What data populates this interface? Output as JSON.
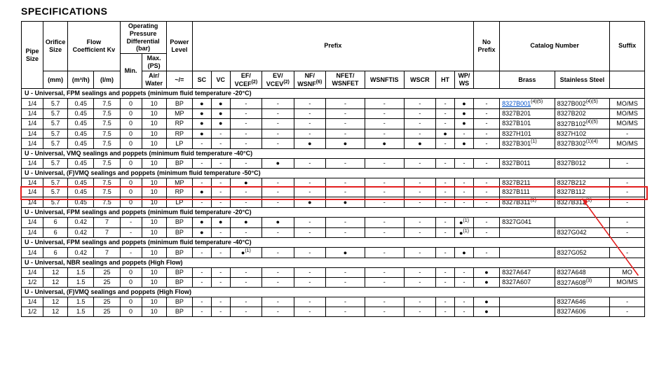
{
  "title": "SPECIFICATIONS",
  "header": {
    "pipeSize": "Pipe Size",
    "orifice": "Orifice Size",
    "flow": "Flow Coefficient Kv",
    "opdiff": "Operating Pressure Differential (bar)",
    "min": "Min.",
    "maxPS": "Max. (PS)",
    "airWater": "Air/ Water",
    "power": "Power Level",
    "prefix": "Prefix",
    "noPrefix": "No Prefix",
    "catalog": "Catalog Number",
    "suffix": "Suffix",
    "mm": "(mm)",
    "m3h": "(m³/h)",
    "lm": "(I/m)",
    "tilde": "~/=",
    "sc": "SC",
    "vc": "VC",
    "ef": "EF/ VCEF",
    "ev": "EV/ VCEV",
    "nf": "NF/ WSNF",
    "nfet": "NFET/ WSNFET",
    "wsnftis": "WSNFTIS",
    "wscr": "WSCR",
    "ht": "HT",
    "wp": "WP/ WS",
    "brass": "Brass",
    "ss": "Stainless Steel",
    "efSup": "(2)",
    "evSup": "(2)",
    "nfSup": "(6)"
  },
  "sections": [
    {
      "label": "U - Universal, FPM sealings and poppets (minimum fluid temperature -20°C)",
      "rows": [
        {
          "pipe": "1/4",
          "orf": "5.7",
          "f1": "0.45",
          "f2": "7.5",
          "min": "0",
          "max": "10",
          "pl": "BP",
          "sc": "●",
          "vc": "●",
          "ef": "-",
          "ev": "-",
          "nf": "-",
          "nfet": "-",
          "wsnftis": "-",
          "wscr": "-",
          "ht": "-",
          "wp": "●",
          "nopfx": "-",
          "brass": "8327B001",
          "brassLink": true,
          "brassSup": "(4)(5)",
          "ss": "8327B002",
          "ssSup": "(4)(5)",
          "suf": "MO/MS"
        },
        {
          "pipe": "1/4",
          "orf": "5.7",
          "f1": "0.45",
          "f2": "7.5",
          "min": "0",
          "max": "10",
          "pl": "MP",
          "sc": "●",
          "vc": "●",
          "ef": "-",
          "ev": "-",
          "nf": "-",
          "nfet": "-",
          "wsnftis": "-",
          "wscr": "-",
          "ht": "-",
          "wp": "●",
          "nopfx": "-",
          "brass": "8327B201",
          "ss": "8327B202",
          "suf": "MO/MS"
        },
        {
          "pipe": "1/4",
          "orf": "5.7",
          "f1": "0.45",
          "f2": "7.5",
          "min": "0",
          "max": "10",
          "pl": "RP",
          "sc": "●",
          "vc": "●",
          "ef": "-",
          "ev": "-",
          "nf": "-",
          "nfet": "-",
          "wsnftis": "-",
          "wscr": "-",
          "ht": "-",
          "wp": "●",
          "nopfx": "-",
          "brass": "8327B101",
          "ss": "8327B102",
          "ssSup": "(4)(5)",
          "suf": "MO/MS"
        },
        {
          "pipe": "1/4",
          "orf": "5.7",
          "f1": "0.45",
          "f2": "7.5",
          "min": "0",
          "max": "10",
          "pl": "RP",
          "sc": "●",
          "vc": "-",
          "ef": "-",
          "ev": "-",
          "nf": "-",
          "nfet": "-",
          "wsnftis": "-",
          "wscr": "-",
          "ht": "●",
          "wp": "-",
          "nopfx": "-",
          "brass": "8327H101",
          "ss": "8327H102",
          "suf": "-"
        },
        {
          "pipe": "1/4",
          "orf": "5.7",
          "f1": "0.45",
          "f2": "7.5",
          "min": "0",
          "max": "10",
          "pl": "LP",
          "sc": "-",
          "vc": "-",
          "ef": "-",
          "ev": "-",
          "nf": "●",
          "nfet": "●",
          "wsnftis": "●",
          "wscr": "●",
          "ht": "-",
          "wp": "●",
          "nopfx": "-",
          "brass": "8327B301",
          "brassSup": "(1)",
          "ss": "8327B302",
          "ssSup": "(1)(4)",
          "suf": "MO/MS"
        }
      ]
    },
    {
      "label": "U - Universal, VMQ sealings and poppets (minimum fluid temperature -40°C)",
      "rows": [
        {
          "pipe": "1/4",
          "orf": "5.7",
          "f1": "0.45",
          "f2": "7.5",
          "min": "0",
          "max": "10",
          "pl": "BP",
          "sc": "-",
          "vc": "-",
          "ef": "-",
          "ev": "●",
          "nf": "-",
          "nfet": "-",
          "wsnftis": "-",
          "wscr": "-",
          "ht": "-",
          "wp": "-",
          "nopfx": "-",
          "brass": "8327B011",
          "ss": "8327B012",
          "suf": "-"
        }
      ]
    },
    {
      "label": "U - Universal, (F)VMQ sealings and poppets (minimum fluid temperature -50°C)",
      "rows": [
        {
          "pipe": "1/4",
          "orf": "5.7",
          "f1": "0.45",
          "f2": "7.5",
          "min": "0",
          "max": "10",
          "pl": "MP",
          "sc": "-",
          "vc": "-",
          "ef": "●",
          "ev": "-",
          "nf": "-",
          "nfet": "-",
          "wsnftis": "-",
          "wscr": "-",
          "ht": "-",
          "wp": "-",
          "nopfx": "-",
          "brass": "8327B211",
          "ss": "8327B212",
          "suf": "-"
        },
        {
          "pipe": "1/4",
          "orf": "5.7",
          "f1": "0.45",
          "f2": "7.5",
          "min": "0",
          "max": "10",
          "pl": "RP",
          "sc": "●",
          "vc": "-",
          "ef": "-",
          "ev": "-",
          "nf": "-",
          "nfet": "-",
          "wsnftis": "-",
          "wscr": "-",
          "ht": "-",
          "wp": "-",
          "nopfx": "-",
          "brass": "8327B111",
          "ss": "8327B112",
          "suf": "-",
          "highlight": true
        },
        {
          "pipe": "1/4",
          "orf": "5.7",
          "f1": "0.45",
          "f2": "7.5",
          "min": "0",
          "max": "10",
          "pl": "LP",
          "sc": "-",
          "vc": "-",
          "ef": "-",
          "ev": "-",
          "nf": "●",
          "nfet": "●",
          "wsnftis": "-",
          "wscr": "-",
          "ht": "-",
          "wp": "-",
          "nopfx": "-",
          "brass": "8327B311",
          "brassSup": "(1)",
          "ss": "8327B312",
          "ssSup": "(1)",
          "suf": "-"
        }
      ]
    },
    {
      "label": "U - Universal, FPM sealings and poppets (minimum fluid temperature -20°C)",
      "rows": [
        {
          "pipe": "1/4",
          "orf": "6",
          "f1": "0.42",
          "f2": "7",
          "min": "-",
          "max": "10",
          "pl": "BP",
          "sc": "●",
          "vc": "●",
          "ef": "●",
          "ev": "●",
          "nf": "-",
          "nfet": "-",
          "wsnftis": "-",
          "wscr": "-",
          "ht": "-",
          "wp": "●",
          "wpSup": "(1)",
          "nopfx": "-",
          "brass": "8327G041",
          "ss": "",
          "suf": "-"
        },
        {
          "pipe": "1/4",
          "orf": "6",
          "f1": "0.42",
          "f2": "7",
          "min": "-",
          "max": "10",
          "pl": "BP",
          "sc": "●",
          "vc": "-",
          "ef": "-",
          "ev": "-",
          "nf": "-",
          "nfet": "-",
          "wsnftis": "-",
          "wscr": "-",
          "ht": "-",
          "wp": "●",
          "wpSup": "(1)",
          "nopfx": "-",
          "brass": "",
          "ss": "8327G042",
          "suf": "-"
        }
      ]
    },
    {
      "label": "U - Universal, FPM sealings and poppets (minimum fluid temperature -40°C)",
      "rows": [
        {
          "pipe": "1/4",
          "orf": "6",
          "f1": "0.42",
          "f2": "7",
          "min": "-",
          "max": "10",
          "pl": "BP",
          "sc": "-",
          "vc": "-",
          "ef": "●",
          "efSup": "(1)",
          "ev": "-",
          "nf": "-",
          "nfet": "●",
          "wsnftis": "-",
          "wscr": "-",
          "ht": "-",
          "wp": "●",
          "nopfx": "-",
          "brass": "",
          "ss": "8327G052",
          "suf": "-"
        }
      ]
    },
    {
      "label": "U - Universal, NBR sealings and poppets (High Flow)",
      "rows": [
        {
          "pipe": "1/4",
          "orf": "12",
          "f1": "1.5",
          "f2": "25",
          "min": "0",
          "max": "10",
          "pl": "BP",
          "sc": "-",
          "vc": "-",
          "ef": "-",
          "ev": "-",
          "nf": "-",
          "nfet": "-",
          "wsnftis": "-",
          "wscr": "-",
          "ht": "-",
          "wp": "-",
          "nopfx": "●",
          "brass": "8327A647",
          "ss": "8327A648",
          "suf": "MO"
        },
        {
          "pipe": "1/2",
          "orf": "12",
          "f1": "1.5",
          "f2": "25",
          "min": "0",
          "max": "10",
          "pl": "BP",
          "sc": "-",
          "vc": "-",
          "ef": "-",
          "ev": "-",
          "nf": "-",
          "nfet": "-",
          "wsnftis": "-",
          "wscr": "-",
          "ht": "-",
          "wp": "-",
          "nopfx": "●",
          "brass": "8327A607",
          "ss": "8327A608",
          "ssSup": "(3)",
          "suf": "MO/MS"
        }
      ]
    },
    {
      "label": "U - Universal, (F)VMQ sealings and poppets (High Flow)",
      "rows": [
        {
          "pipe": "1/4",
          "orf": "12",
          "f1": "1.5",
          "f2": "25",
          "min": "0",
          "max": "10",
          "pl": "BP",
          "sc": "-",
          "vc": "-",
          "ef": "-",
          "ev": "-",
          "nf": "-",
          "nfet": "-",
          "wsnftis": "-",
          "wscr": "-",
          "ht": "-",
          "wp": "-",
          "nopfx": "●",
          "brass": "",
          "ss": "8327A646",
          "suf": "-"
        },
        {
          "pipe": "1/2",
          "orf": "12",
          "f1": "1.5",
          "f2": "25",
          "min": "0",
          "max": "10",
          "pl": "BP",
          "sc": "-",
          "vc": "-",
          "ef": "-",
          "ev": "-",
          "nf": "-",
          "nfet": "-",
          "wsnftis": "-",
          "wscr": "-",
          "ht": "-",
          "wp": "-",
          "nopfx": "●",
          "brass": "",
          "ss": "8327A606",
          "suf": "-"
        }
      ]
    }
  ],
  "highlightColor": "#e21e1e"
}
